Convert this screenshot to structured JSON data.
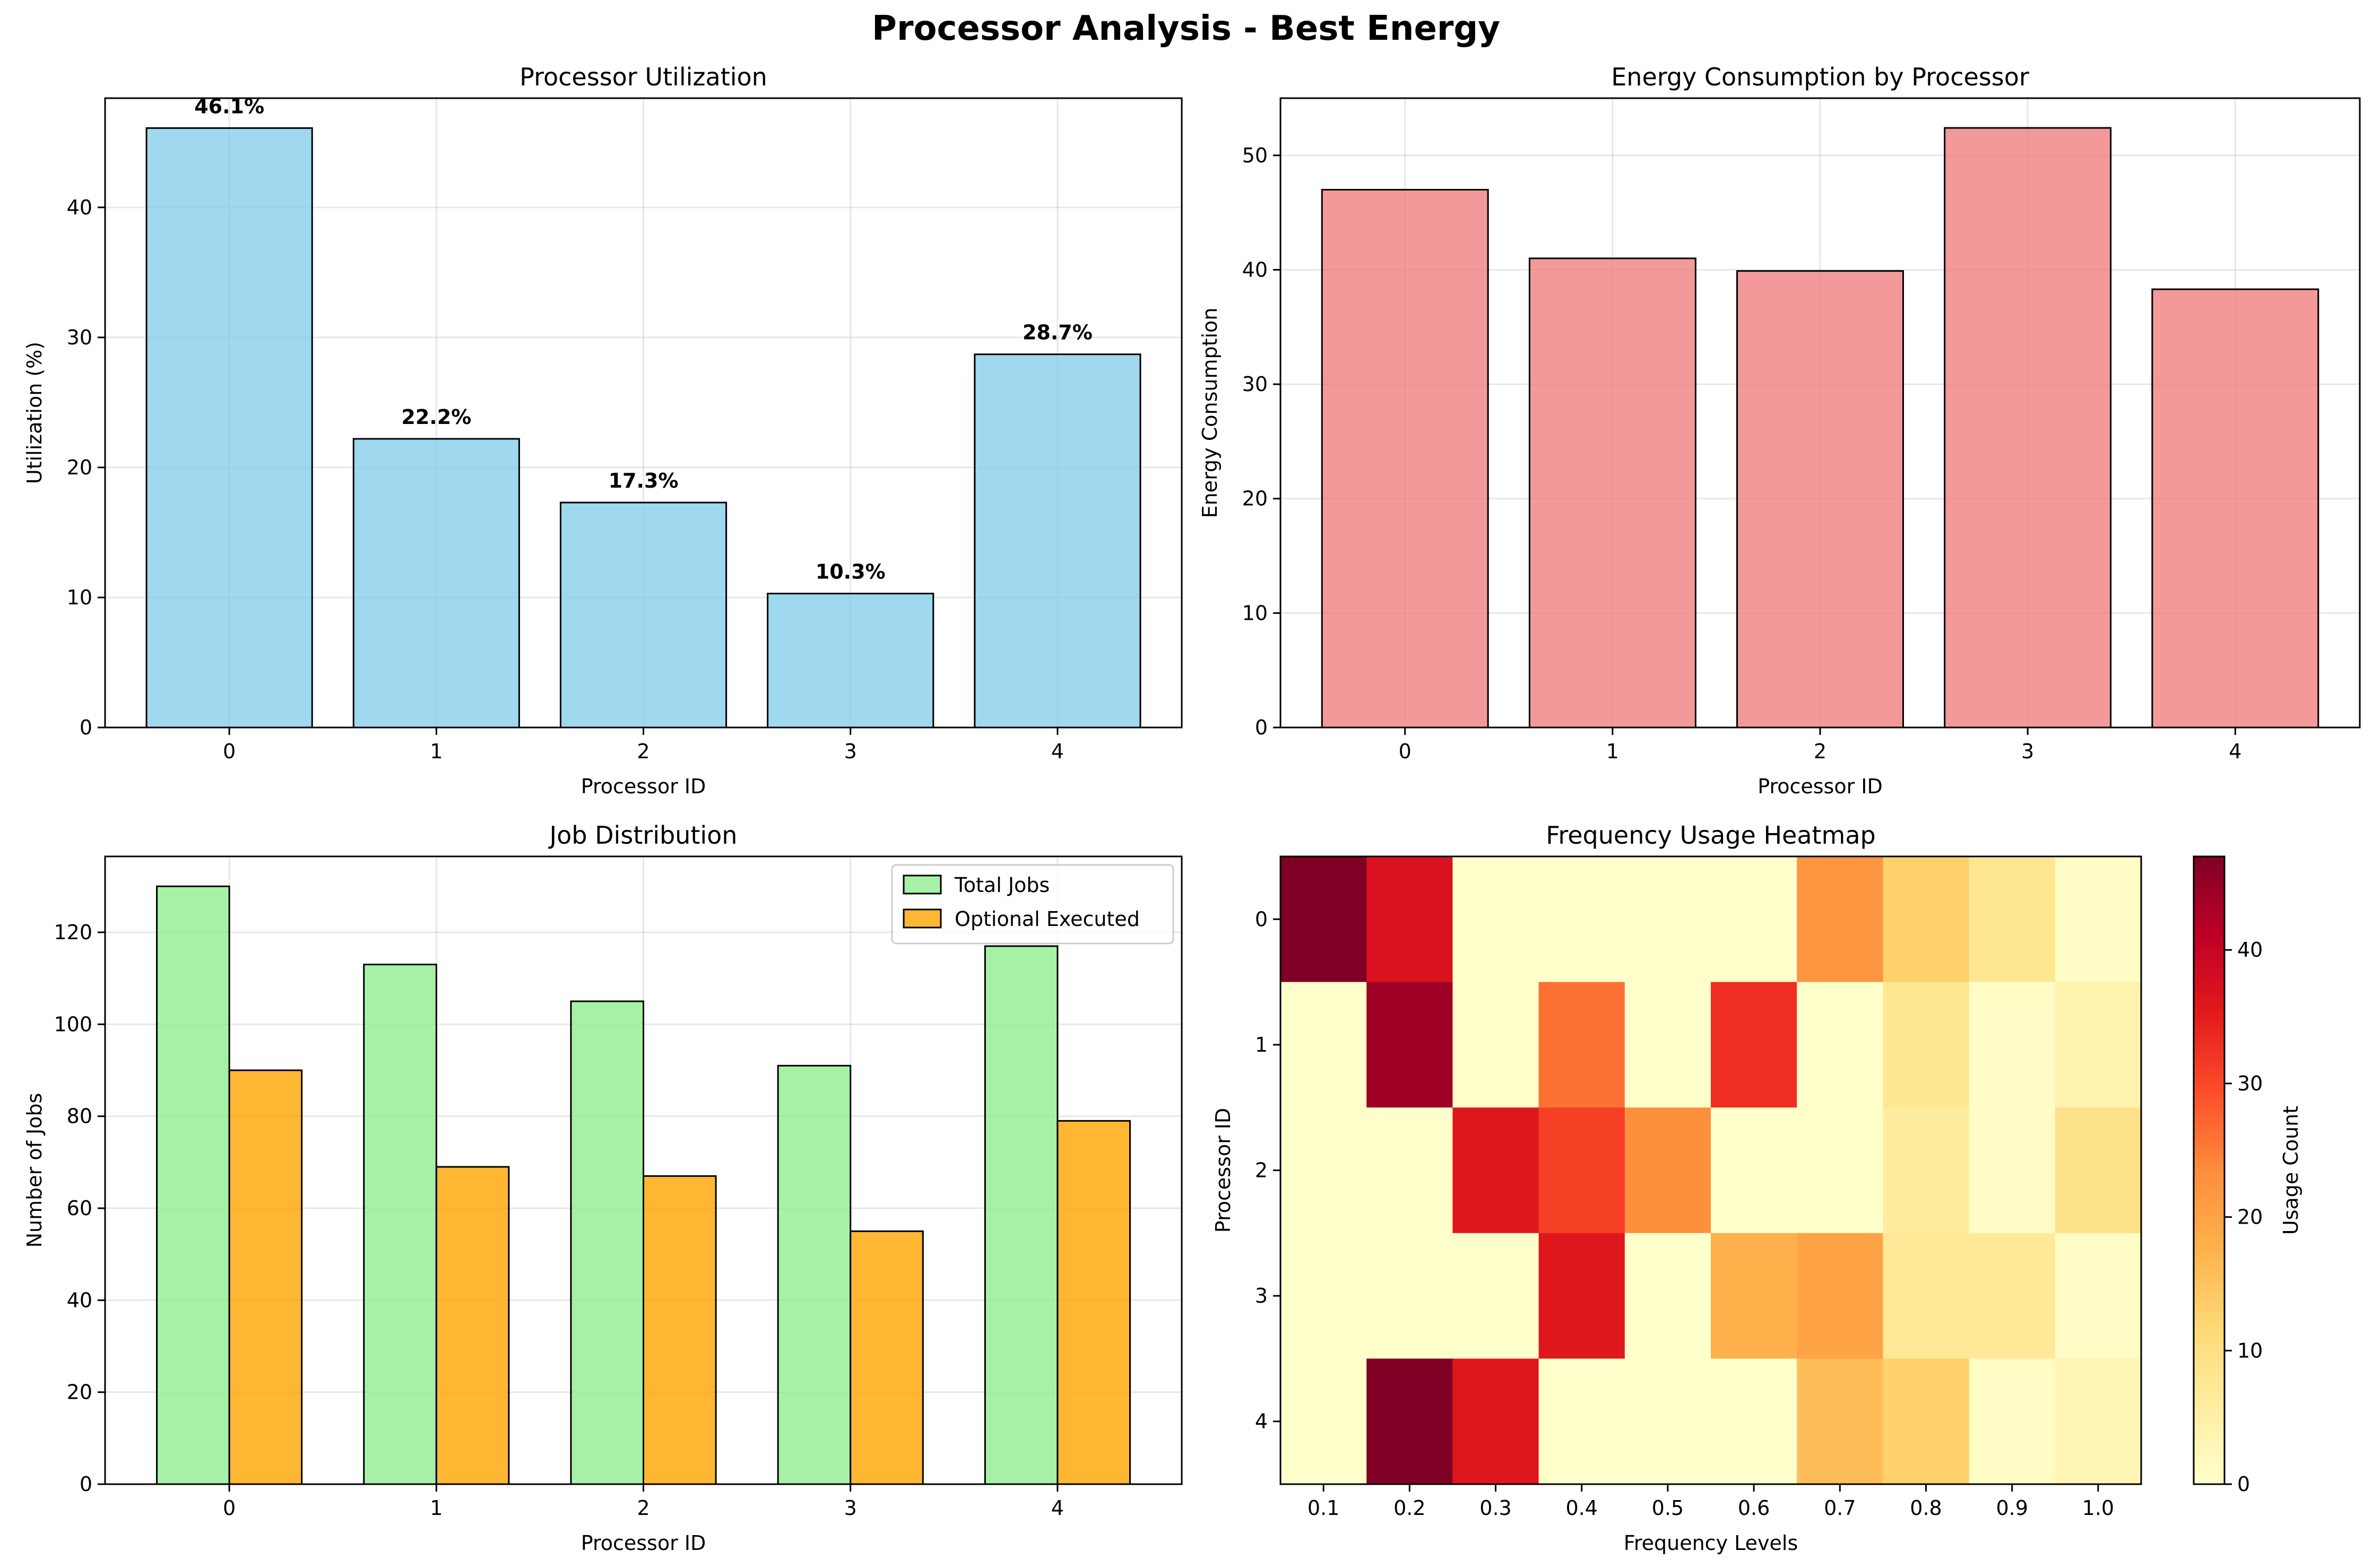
{
  "figure": {
    "title": "Processor Analysis - Best Energy"
  },
  "chart_data": [
    {
      "type": "bar",
      "title": "Processor Utilization",
      "xlabel": "Processor ID",
      "ylabel": "Utilization (%)",
      "categories": [
        "0",
        "1",
        "2",
        "3",
        "4"
      ],
      "values": [
        46.1,
        22.2,
        17.3,
        10.3,
        28.7
      ],
      "data_labels": [
        "46.1%",
        "22.2%",
        "17.3%",
        "10.3%",
        "28.7%"
      ],
      "ylim": [
        0,
        48.4
      ],
      "yticks": [
        0,
        10,
        20,
        30,
        40
      ],
      "color": "#87CEEB",
      "grid": true
    },
    {
      "type": "bar",
      "title": "Energy Consumption by Processor",
      "xlabel": "Processor ID",
      "ylabel": "Energy Consumption",
      "categories": [
        "0",
        "1",
        "2",
        "3",
        "4"
      ],
      "values": [
        47.0,
        41.0,
        39.9,
        52.4,
        38.3
      ],
      "ylim": [
        0,
        55.0
      ],
      "yticks": [
        0,
        10,
        20,
        30,
        40,
        50
      ],
      "color": "#F08080",
      "grid": true
    },
    {
      "type": "bar",
      "title": "Job Distribution",
      "xlabel": "Processor ID",
      "ylabel": "Number of Jobs",
      "categories": [
        "0",
        "1",
        "2",
        "3",
        "4"
      ],
      "series": [
        {
          "name": "Total Jobs",
          "values": [
            130,
            113,
            105,
            91,
            117
          ],
          "color": "#90EE90"
        },
        {
          "name": "Optional Executed",
          "values": [
            90,
            69,
            67,
            55,
            79
          ],
          "color": "#FFA500"
        }
      ],
      "ylim": [
        0,
        136.5
      ],
      "yticks": [
        0,
        20,
        40,
        60,
        80,
        100,
        120
      ],
      "legend": "top-right",
      "grid": true
    },
    {
      "type": "heatmap",
      "title": "Frequency Usage Heatmap",
      "xlabel": "Frequency Levels",
      "ylabel": "Processor ID",
      "x": [
        "0.1",
        "0.2",
        "0.3",
        "0.4",
        "0.5",
        "0.6",
        "0.7",
        "0.8",
        "0.9",
        "1.0"
      ],
      "y": [
        "0",
        "1",
        "2",
        "3",
        "4"
      ],
      "values": [
        [
          47,
          37,
          0,
          0,
          0,
          0,
          22,
          13,
          8,
          1
        ],
        [
          0,
          44,
          0,
          26,
          0,
          33,
          0,
          8,
          1,
          4
        ],
        [
          0,
          0,
          36,
          31,
          23,
          0,
          0,
          6,
          1,
          9
        ],
        [
          0,
          0,
          0,
          36,
          0,
          18,
          20,
          7,
          7,
          1
        ],
        [
          0,
          47,
          36,
          0,
          0,
          0,
          16,
          13,
          1,
          3
        ]
      ],
      "colormap": "YlOrRd",
      "colorbar": {
        "label": "Usage Count",
        "min": 0,
        "max": 47,
        "ticks": [
          0,
          10,
          20,
          30,
          40
        ]
      }
    }
  ]
}
